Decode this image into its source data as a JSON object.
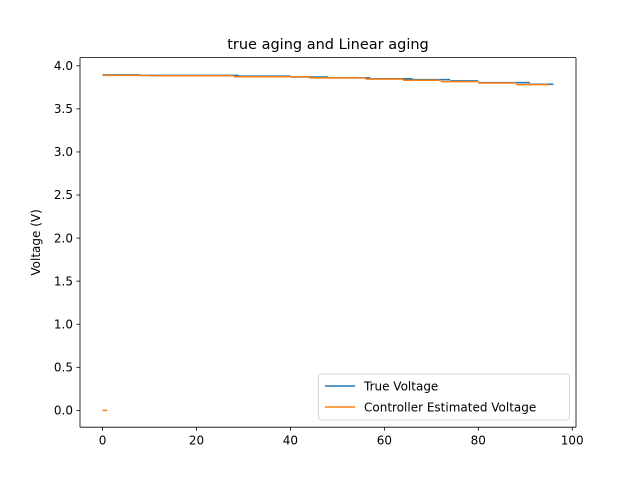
{
  "chart_data": {
    "type": "line",
    "title": "true aging and Linear aging",
    "xlabel": "",
    "ylabel": "Voltage (V)",
    "xlim": [
      -4.8,
      100.8
    ],
    "ylim": [
      -0.195,
      4.095
    ],
    "x_ticks": [
      0,
      20,
      40,
      60,
      80,
      100
    ],
    "y_ticks": [
      0.0,
      0.5,
      1.0,
      1.5,
      2.0,
      2.5,
      3.0,
      3.5,
      4.0
    ],
    "x_tick_labels": [
      "0",
      "20",
      "40",
      "60",
      "80",
      "100"
    ],
    "y_tick_labels": [
      "0.0",
      "0.5",
      "1.0",
      "1.5",
      "2.0",
      "2.5",
      "3.0",
      "3.5",
      "4.0"
    ],
    "grid": false,
    "legend_position": "lower-right",
    "series": [
      {
        "name": "True Voltage",
        "color": "#1f77b4",
        "segments": [
          [
            [
              0,
              3.895
            ],
            [
              8,
              3.895
            ]
          ],
          [
            [
              8,
              3.888
            ],
            [
              29,
              3.888
            ]
          ],
          [
            [
              29,
              3.88
            ],
            [
              40,
              3.88
            ]
          ],
          [
            [
              40,
              3.87
            ],
            [
              48,
              3.87
            ]
          ],
          [
            [
              48,
              3.86
            ],
            [
              57,
              3.86
            ]
          ],
          [
            [
              57,
              3.85
            ],
            [
              66,
              3.85
            ]
          ],
          [
            [
              66,
              3.84
            ],
            [
              74,
              3.84
            ]
          ],
          [
            [
              74,
              3.825
            ],
            [
              80,
              3.825
            ]
          ],
          [
            [
              80,
              3.805
            ],
            [
              91,
              3.805
            ]
          ],
          [
            [
              91,
              3.785
            ],
            [
              96,
              3.785
            ]
          ]
        ]
      },
      {
        "name": "Controller Estimated Voltage",
        "color": "#ff7f0e",
        "segments": [
          [
            [
              0,
              0.0
            ],
            [
              1,
              0.0
            ]
          ],
          [
            [
              0,
              3.888
            ],
            [
              10,
              3.888
            ]
          ],
          [
            [
              10,
              3.884
            ],
            [
              28,
              3.884
            ]
          ],
          [
            [
              28,
              3.872
            ],
            [
              44,
              3.872
            ]
          ],
          [
            [
              44,
              3.86
            ],
            [
              56,
              3.86
            ]
          ],
          [
            [
              56,
              3.845
            ],
            [
              64,
              3.845
            ]
          ],
          [
            [
              64,
              3.832
            ],
            [
              72,
              3.832
            ]
          ],
          [
            [
              72,
              3.816
            ],
            [
              80,
              3.816
            ]
          ],
          [
            [
              80,
              3.8
            ],
            [
              88,
              3.8
            ]
          ],
          [
            [
              88,
              3.782
            ],
            [
              95,
              3.782
            ]
          ]
        ]
      }
    ]
  }
}
